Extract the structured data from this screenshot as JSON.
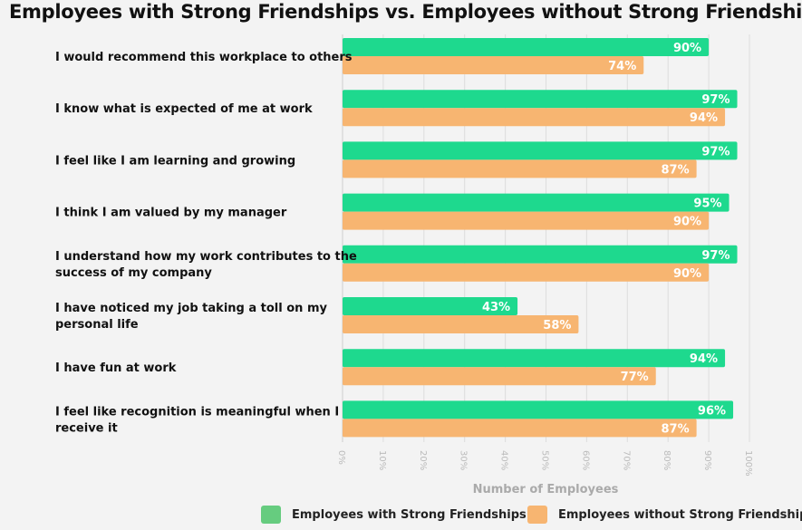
{
  "chart_data": {
    "type": "bar",
    "orientation": "horizontal",
    "title": "Employees with Strong Friendships vs. Employees without Strong Friendships",
    "xlabel": "Number of Employees",
    "xlim": [
      0,
      100
    ],
    "ticks": [
      "0%",
      "10%",
      "20%",
      "30%",
      "40%",
      "50%",
      "60%",
      "70%",
      "80%",
      "90%",
      "100%"
    ],
    "grid": true,
    "legend_position": "bottom",
    "categories": [
      [
        "I would recommend this workplace to others"
      ],
      [
        "I know what is expected of me at work"
      ],
      [
        "I feel like I am learning and growing"
      ],
      [
        "I think I am valued by my manager"
      ],
      [
        "I understand how my work contributes to the",
        "success of my company"
      ],
      [
        "I have noticed my job taking a toll on my",
        "personal life"
      ],
      [
        "I have fun at work"
      ],
      [
        "I feel like recognition is meaningful when I",
        "receive it"
      ]
    ],
    "series": [
      {
        "name": "Employees with Strong Friendships",
        "color": "#1ed98e",
        "values": [
          90,
          97,
          97,
          95,
          97,
          43,
          94,
          96
        ]
      },
      {
        "name": "Employees without Strong Friendships",
        "color": "#f7b571",
        "values": [
          74,
          94,
          87,
          90,
          90,
          58,
          77,
          87
        ]
      }
    ]
  }
}
